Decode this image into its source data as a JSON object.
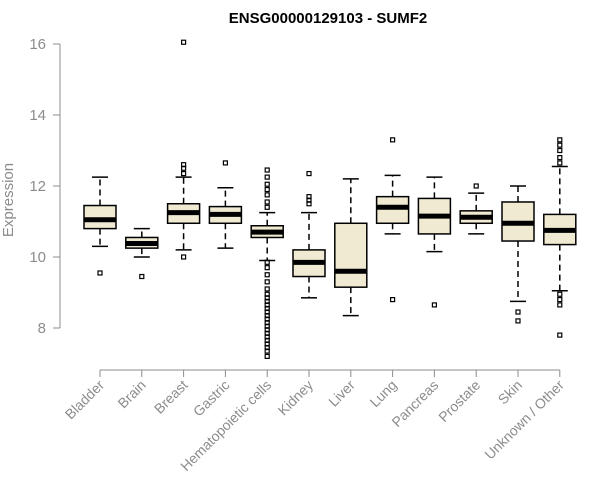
{
  "chart_data": {
    "type": "boxplot",
    "title": "ENSG00000129103 - SUMF2",
    "xlabel": "",
    "ylabel": "Expression",
    "ylim": [
      7.1,
      16.2
    ],
    "yticks": [
      8,
      10,
      12,
      14,
      16
    ],
    "colors": {
      "box_fill": "#f0ead2",
      "stroke": "#000000",
      "axis": "#8c8c8c"
    },
    "categories": [
      "Bladder",
      "Brain",
      "Breast",
      "Gastric",
      "Hematopoietic cells",
      "Kidney",
      "Liver",
      "Lung",
      "Pancreas",
      "Prostate",
      "Skin",
      "Unknown / Other"
    ],
    "boxes": [
      {
        "category": "Bladder",
        "whisker_low": 10.3,
        "q1": 10.8,
        "median": 11.05,
        "q3": 11.45,
        "whisker_high": 12.25,
        "outliers": [
          9.55
        ]
      },
      {
        "category": "Brain",
        "whisker_low": 10.0,
        "q1": 10.25,
        "median": 10.38,
        "q3": 10.55,
        "whisker_high": 10.8,
        "outliers": [
          9.45
        ]
      },
      {
        "category": "Breast",
        "whisker_low": 10.2,
        "q1": 10.95,
        "median": 11.25,
        "q3": 11.5,
        "whisker_high": 12.25,
        "outliers": [
          10.0,
          12.35,
          12.5,
          12.6,
          16.05
        ]
      },
      {
        "category": "Gastric",
        "whisker_low": 10.25,
        "q1": 10.95,
        "median": 11.2,
        "q3": 11.42,
        "whisker_high": 11.95,
        "outliers": [
          12.65
        ]
      },
      {
        "category": "Hematopoietic cells",
        "whisker_low": 9.9,
        "q1": 10.55,
        "median": 10.7,
        "q3": 10.88,
        "whisker_high": 11.25,
        "outliers": [
          7.2,
          7.35,
          7.45,
          7.55,
          7.65,
          7.75,
          7.85,
          7.95,
          8.05,
          8.15,
          8.25,
          8.35,
          8.45,
          8.55,
          8.65,
          8.75,
          8.85,
          8.95,
          9.1,
          9.3,
          9.5,
          9.7,
          9.85,
          11.4,
          11.55,
          11.75,
          11.9,
          12.05,
          12.25,
          12.45
        ]
      },
      {
        "category": "Kidney",
        "whisker_low": 8.85,
        "q1": 9.45,
        "median": 9.85,
        "q3": 10.2,
        "whisker_high": 11.25,
        "outliers": [
          11.5,
          11.6,
          11.7,
          12.35
        ]
      },
      {
        "category": "Liver",
        "whisker_low": 8.35,
        "q1": 9.15,
        "median": 9.6,
        "q3": 10.95,
        "whisker_high": 12.2,
        "outliers": []
      },
      {
        "category": "Lung",
        "whisker_low": 10.65,
        "q1": 10.95,
        "median": 11.4,
        "q3": 11.7,
        "whisker_high": 12.3,
        "outliers": [
          8.8,
          13.3
        ]
      },
      {
        "category": "Pancreas",
        "whisker_low": 10.15,
        "q1": 10.65,
        "median": 11.15,
        "q3": 11.65,
        "whisker_high": 12.25,
        "outliers": [
          8.65
        ]
      },
      {
        "category": "Prostate",
        "whisker_low": 10.65,
        "q1": 10.95,
        "median": 11.12,
        "q3": 11.3,
        "whisker_high": 11.8,
        "outliers": [
          12.0
        ]
      },
      {
        "category": "Skin",
        "whisker_low": 8.75,
        "q1": 10.45,
        "median": 10.95,
        "q3": 11.55,
        "whisker_high": 12.0,
        "outliers": [
          8.2,
          8.45
        ]
      },
      {
        "category": "Unknown / Other",
        "whisker_low": 9.05,
        "q1": 10.35,
        "median": 10.75,
        "q3": 11.2,
        "whisker_high": 12.55,
        "outliers": [
          7.8,
          8.65,
          8.8,
          8.95,
          12.65,
          12.8,
          13.0,
          13.15,
          13.3
        ]
      }
    ]
  }
}
